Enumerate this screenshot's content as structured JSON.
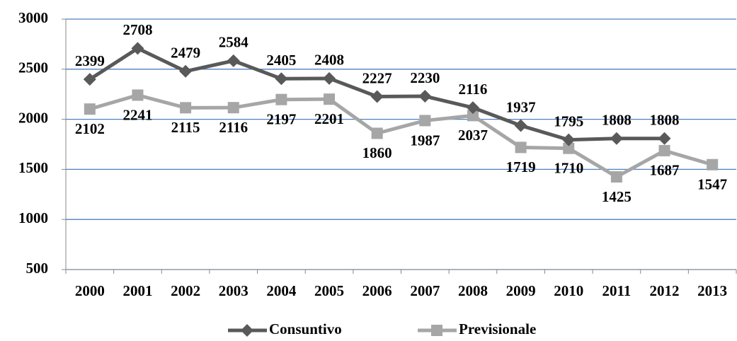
{
  "chart_data": {
    "type": "line",
    "categories": [
      "2000",
      "2001",
      "2002",
      "2003",
      "2004",
      "2005",
      "2006",
      "2007",
      "2008",
      "2009",
      "2010",
      "2011",
      "2012",
      "2013"
    ],
    "series": [
      {
        "name": "Consuntivo",
        "color": "#595959",
        "marker": "diamond",
        "values": [
          2399,
          2708,
          2479,
          2584,
          2405,
          2408,
          2227,
          2230,
          2116,
          1937,
          1795,
          1808,
          1808,
          null
        ]
      },
      {
        "name": "Previsionale",
        "color": "#a6a6a6",
        "marker": "square",
        "values": [
          2102,
          2241,
          2115,
          2116,
          2197,
          2201,
          1860,
          1987,
          2037,
          1719,
          1710,
          1425,
          1687,
          1547
        ]
      }
    ],
    "ylim": [
      500,
      3000
    ],
    "yticks": [
      500,
      1000,
      1500,
      2000,
      2500,
      3000
    ],
    "grid": true,
    "legend": "bottom"
  }
}
